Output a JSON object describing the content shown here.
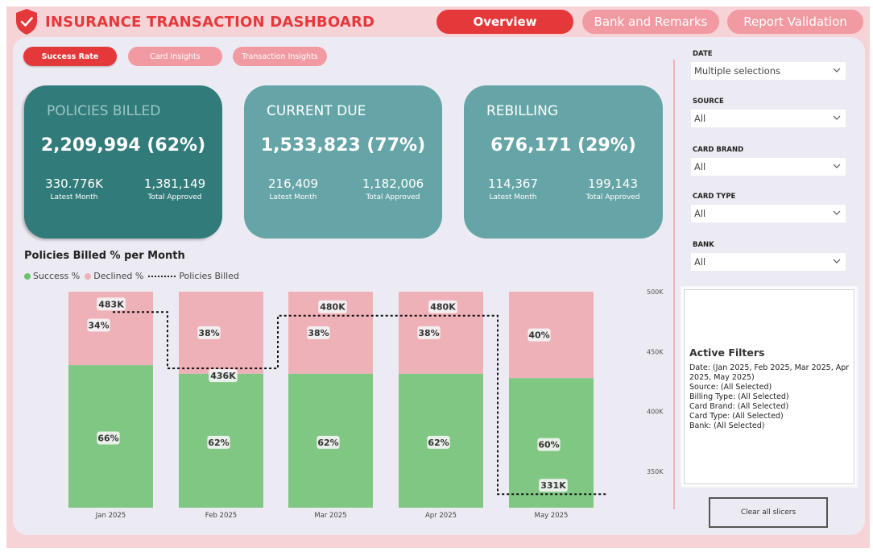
{
  "header": {
    "title": "INSURANCE TRANSACTION DASHBOARD",
    "logo_icon": "shield-check-icon",
    "nav": [
      {
        "label": "Overview",
        "active": true
      },
      {
        "label": "Bank and Remarks",
        "active": false
      },
      {
        "label": "Report Validation",
        "active": false
      }
    ]
  },
  "subtabs": [
    {
      "label": "Success Rate",
      "active": true
    },
    {
      "label": "Card Insights",
      "active": false
    },
    {
      "label": "Transaction Insights",
      "active": false
    }
  ],
  "kpis": [
    {
      "title": "POLICIES BILLED",
      "value": "2,209,994 (62%)",
      "stat1_value": "330.776K",
      "stat1_label": "Latest Month",
      "stat2_value": "1,381,149",
      "stat2_label": "Total Approved",
      "color": "#317b7a"
    },
    {
      "title": "CURRENT DUE",
      "value": "1,533,823 (77%)",
      "stat1_value": "216,409",
      "stat1_label": "Latest Month",
      "stat2_value": "1,182,006",
      "stat2_label": "Total Approved",
      "color": "#66a5a7"
    },
    {
      "title": "REBILLING",
      "value": "676,171 (29%)",
      "stat1_value": "114,367",
      "stat1_label": "Latest Month",
      "stat2_value": "199,143",
      "stat2_label": "Total Approved",
      "color": "#66a5a7"
    }
  ],
  "chart": {
    "title": "Policies Billed % per Month",
    "legend": [
      "Success %",
      "Declined %",
      "Policies Billed"
    ]
  },
  "chart_data": {
    "type": "bar",
    "stacked": true,
    "categories": [
      "Jan 2025",
      "Feb 2025",
      "Mar 2025",
      "Apr 2025",
      "May 2025"
    ],
    "series": [
      {
        "name": "Success %",
        "values": [
          66,
          62,
          62,
          62,
          60
        ],
        "color": "#80c783"
      },
      {
        "name": "Declined %",
        "values": [
          34,
          38,
          38,
          38,
          40
        ],
        "color": "#efb1b8"
      }
    ],
    "line": {
      "name": "Policies Billed",
      "values": [
        483000,
        436000,
        480000,
        480000,
        331000
      ],
      "labels": [
        "483K",
        "436K",
        "480K",
        "480K",
        "331K"
      ],
      "style": "dotted-step"
    },
    "secondary_axis": {
      "ticks": [
        "500K",
        "450K",
        "400K",
        "350K"
      ],
      "tick_values": [
        500000,
        450000,
        400000,
        350000
      ]
    },
    "ylim": [
      0,
      100
    ]
  },
  "slicers": [
    {
      "label": "DATE",
      "value": "Multiple selections"
    },
    {
      "label": "SOURCE",
      "value": "All"
    },
    {
      "label": "CARD BRAND",
      "value": "All"
    },
    {
      "label": "CARD TYPE",
      "value": "All"
    },
    {
      "label": "BANK",
      "value": "All"
    }
  ],
  "active_filters": {
    "title": "Active Filters",
    "lines": [
      "Date: (Jan 2025, Feb 2025, Mar 2025, Apr 2025, May 2025)",
      "Source: (All Selected)",
      "Billing Type: (All Selected)",
      "Card Brand: (All Selected)",
      "Card Type: (All Selected)",
      "Bank: (All Selected)"
    ]
  },
  "clear_button": "Clear all slicers"
}
